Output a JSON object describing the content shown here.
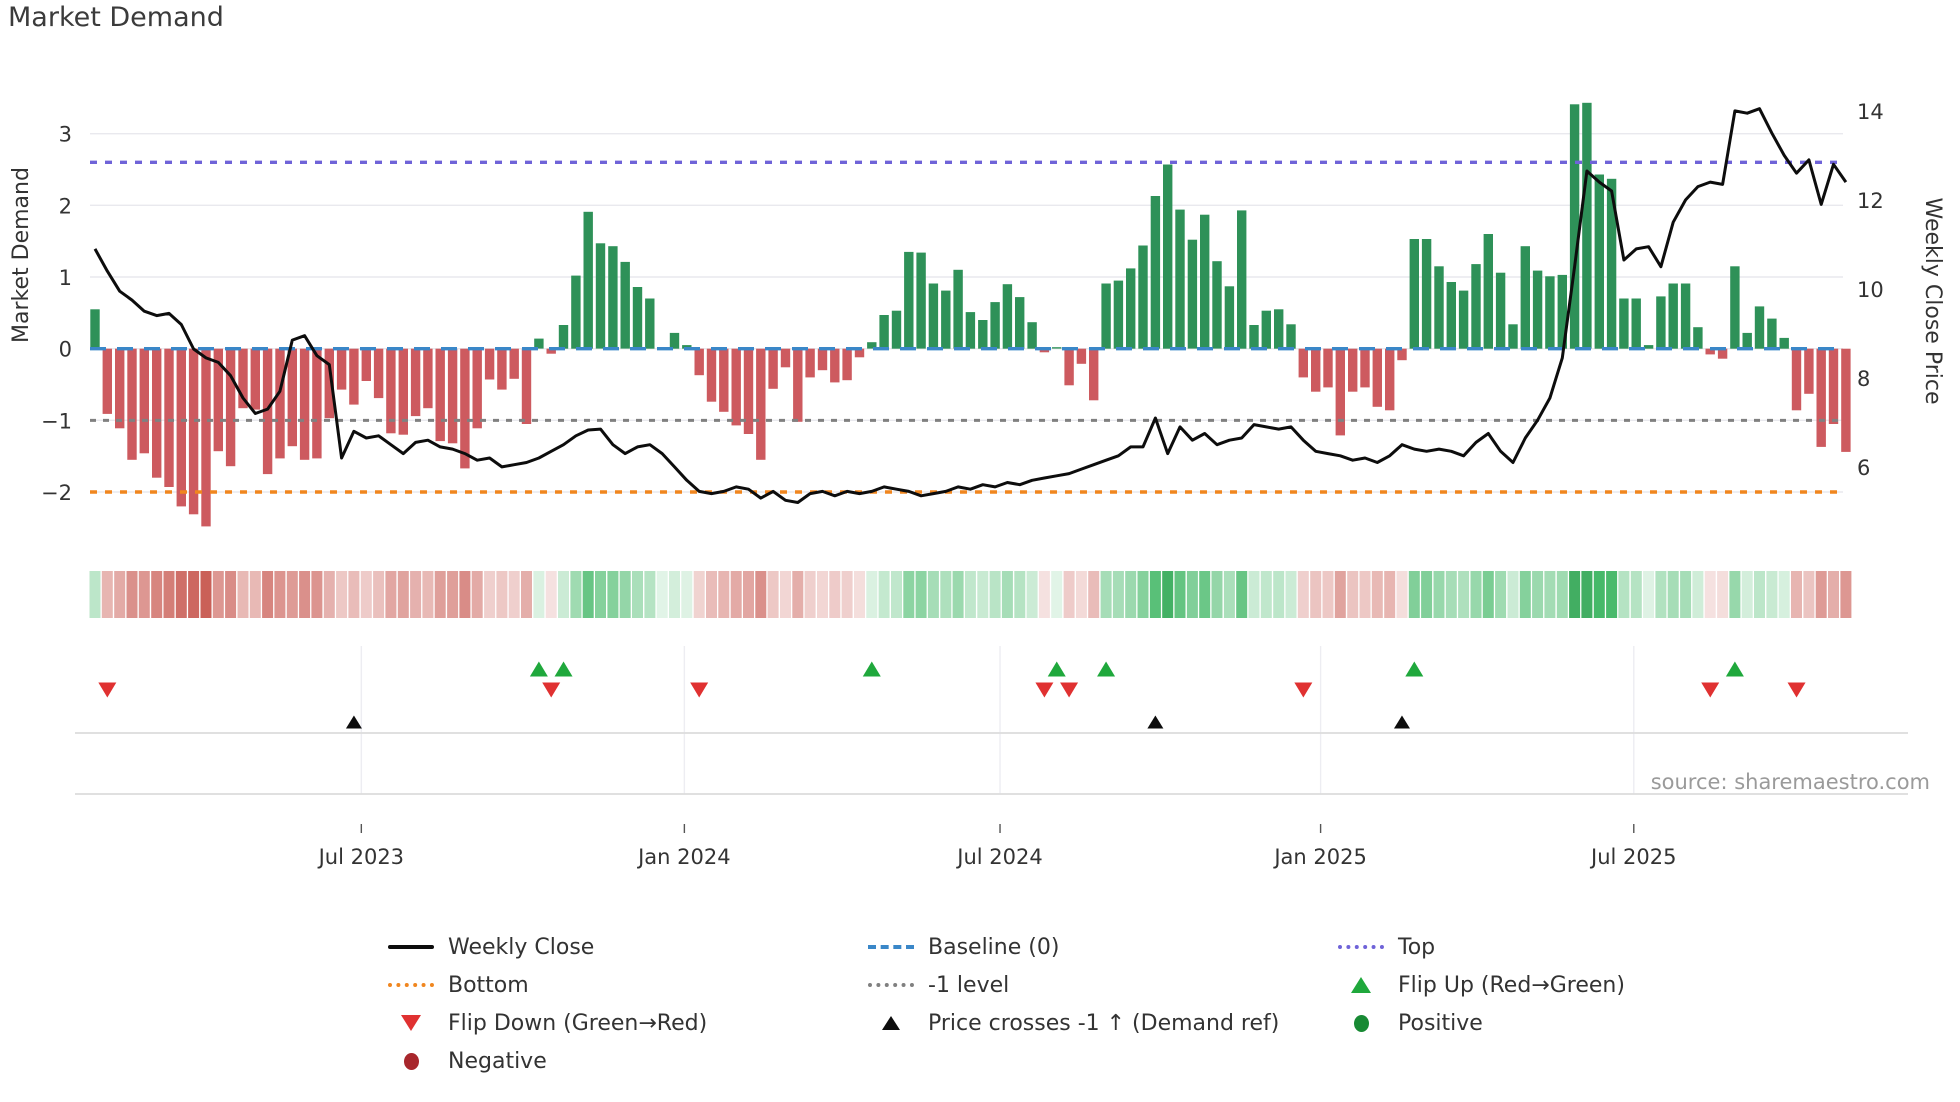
{
  "title": "Market Demand",
  "source": "source: sharemaestro.com",
  "axes": {
    "left_label": "Market Demand",
    "right_label": "Weekly Close Price",
    "demand_ticks": [
      3,
      2,
      1,
      0,
      -1,
      -2
    ],
    "price_ticks": [
      14,
      12,
      10,
      8,
      6
    ],
    "x_ticks": [
      {
        "label": "Jul 2023",
        "week": 21.6
      },
      {
        "label": "Jan 2024",
        "week": 47.8
      },
      {
        "label": "Jul 2024",
        "week": 73.4
      },
      {
        "label": "Jan 2025",
        "week": 99.4
      },
      {
        "label": "Jul 2025",
        "week": 124.8
      }
    ]
  },
  "colors": {
    "bar_pos": "#2e9158",
    "bar_neg": "#cd5a5f",
    "price_line": "#0d0d0d",
    "baseline": "#3a87c8",
    "top": "#6f63d8",
    "bottom": "#f0861f",
    "minus1": "#808080",
    "flip_up": "#1fa83c",
    "flip_down": "#e03131",
    "price_cross": "#0d0d0d",
    "positive": "#188a34",
    "negative": "#a8262c",
    "grid": "#e9e9ee",
    "axis_text": "#333333",
    "marker_line": "#dcdcdc"
  },
  "legend": {
    "items": [
      {
        "label": "Weekly Close"
      },
      {
        "label": "Baseline (0)"
      },
      {
        "label": "Top"
      },
      {
        "label": "Bottom"
      },
      {
        "label": "-1 level"
      },
      {
        "label": "Flip Up (Red→Green)"
      },
      {
        "label": "Flip Down (Green→Red)"
      },
      {
        "label": "Price crosses -1 ↑ (Demand ref)"
      },
      {
        "label": "Positive"
      },
      {
        "label": "Negative"
      }
    ]
  },
  "chart_data": {
    "type": "bar",
    "subtype": "bar+line dual-axis weekly",
    "title": "Market Demand",
    "xlabel": "",
    "ylabel_left": "Market Demand",
    "ylabel_right": "Weekly Close Price",
    "x_range": [
      "Feb 2023",
      "Oct 2025"
    ],
    "weeks": 143,
    "ylim_left": [
      -2.6,
      4.0
    ],
    "ylim_right": [
      4.47,
      15.1
    ],
    "grid": "horizontal-light",
    "legend_position": "bottom",
    "levels": {
      "top": 2.6,
      "baseline": 0,
      "minus1": -1,
      "bottom": -2
    },
    "series": [
      {
        "name": "Market Demand",
        "type": "bar",
        "axis": "left",
        "values": [
          0.55,
          -0.91,
          -1.11,
          -1.55,
          -1.46,
          -1.8,
          -1.93,
          -2.2,
          -2.31,
          -2.48,
          -1.43,
          -1.64,
          -0.83,
          -0.85,
          -1.75,
          -1.53,
          -1.36,
          -1.55,
          -1.53,
          -0.97,
          -0.57,
          -0.78,
          -0.45,
          -0.69,
          -1.18,
          -1.2,
          -0.94,
          -0.83,
          -1.29,
          -1.32,
          -1.67,
          -1.11,
          -0.43,
          -0.57,
          -0.42,
          -1.05,
          0.14,
          -0.07,
          0.33,
          1.02,
          1.91,
          1.47,
          1.43,
          1.21,
          0.86,
          0.7,
          0.02,
          0.22,
          0.05,
          -0.37,
          -0.74,
          -0.88,
          -1.07,
          -1.19,
          -1.55,
          -0.56,
          -0.26,
          -1.02,
          -0.4,
          -0.3,
          -0.47,
          -0.44,
          -0.12,
          0.09,
          0.47,
          0.53,
          1.35,
          1.34,
          0.91,
          0.81,
          1.1,
          0.51,
          0.4,
          0.65,
          0.9,
          0.72,
          0.37,
          -0.05,
          0.02,
          -0.51,
          -0.21,
          -0.72,
          0.91,
          0.95,
          1.12,
          1.44,
          2.13,
          2.57,
          1.94,
          1.52,
          1.87,
          1.22,
          0.87,
          1.93,
          0.33,
          0.53,
          0.55,
          0.34,
          -0.4,
          -0.6,
          -0.54,
          -1.21,
          -0.6,
          -0.54,
          -0.81,
          -0.86,
          -0.16,
          1.53,
          1.53,
          1.15,
          0.93,
          0.81,
          1.18,
          1.6,
          1.06,
          0.34,
          1.43,
          1.09,
          1.01,
          1.03,
          3.41,
          3.43,
          2.43,
          2.37,
          0.7,
          0.7,
          0.05,
          0.73,
          0.91,
          0.91,
          0.3,
          -0.08,
          -0.14,
          1.15,
          0.22,
          0.59,
          0.42,
          0.15,
          -0.86,
          -0.63,
          -1.37,
          -1.05,
          -1.44
        ]
      },
      {
        "name": "Weekly Close",
        "type": "line",
        "axis": "right",
        "values": [
          10.9,
          10.4,
          9.95,
          9.75,
          9.5,
          9.4,
          9.45,
          9.2,
          8.65,
          8.45,
          8.35,
          8.05,
          7.55,
          7.2,
          7.3,
          7.7,
          8.85,
          8.95,
          8.5,
          8.3,
          6.2,
          6.8,
          6.65,
          6.7,
          6.5,
          6.3,
          6.55,
          6.6,
          6.45,
          6.4,
          6.3,
          6.15,
          6.2,
          6.0,
          6.05,
          6.1,
          6.2,
          6.35,
          6.5,
          6.7,
          6.83,
          6.85,
          6.5,
          6.3,
          6.45,
          6.5,
          6.3,
          6.0,
          5.7,
          5.45,
          5.4,
          5.45,
          5.55,
          5.5,
          5.3,
          5.45,
          5.25,
          5.2,
          5.4,
          5.45,
          5.35,
          5.45,
          5.4,
          5.45,
          5.55,
          5.5,
          5.45,
          5.35,
          5.4,
          5.45,
          5.55,
          5.5,
          5.6,
          5.55,
          5.65,
          5.6,
          5.7,
          5.75,
          5.8,
          5.85,
          5.95,
          6.05,
          6.15,
          6.25,
          6.45,
          6.45,
          7.1,
          6.3,
          6.9,
          6.6,
          6.75,
          6.5,
          6.6,
          6.65,
          6.95,
          6.9,
          6.85,
          6.9,
          6.6,
          6.35,
          6.3,
          6.25,
          6.15,
          6.2,
          6.1,
          6.25,
          6.5,
          6.4,
          6.35,
          6.4,
          6.35,
          6.25,
          6.55,
          6.75,
          6.35,
          6.1,
          6.65,
          7.05,
          7.55,
          8.45,
          10.5,
          12.65,
          12.4,
          12.2,
          10.65,
          10.9,
          10.95,
          10.5,
          11.5,
          12.0,
          12.3,
          12.4,
          12.35,
          14.0,
          13.95,
          14.05,
          13.5,
          13.0,
          12.6,
          12.9,
          11.9,
          12.8,
          12.4
        ]
      }
    ],
    "markers": {
      "flip_up_weeks": [
        36,
        38,
        63,
        78,
        82,
        107,
        133
      ],
      "flip_down_weeks": [
        1,
        37,
        49,
        77,
        79,
        98,
        131,
        138
      ],
      "price_cross_weeks": [
        21,
        86,
        106
      ]
    },
    "heatmap_strip": "per-week cells colored by Market Demand sign and magnitude (red negative, green positive)"
  }
}
